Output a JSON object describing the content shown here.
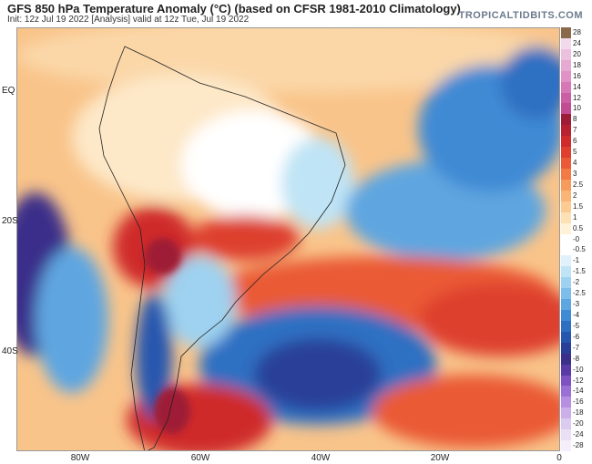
{
  "header": {
    "title": "GFS 850 hPa Temperature Anomaly (°C) (based on CFSR 1981-2010 Climatology)",
    "subtitle": "Init: 12z Jul 19 2022   [Analysis]   valid at 12z Tue, Jul 19 2022",
    "brand": "TROPICALTIDBITS.COM"
  },
  "map": {
    "lat_labels": [
      "EQ",
      "20S",
      "40S"
    ],
    "lon_labels": [
      "80W",
      "60W",
      "40W",
      "20W",
      "0"
    ]
  },
  "legend": {
    "items": [
      {
        "label": "28",
        "color": "#8a6a4a"
      },
      {
        "label": "24",
        "color": "#f3d9ec"
      },
      {
        "label": "20",
        "color": "#ecc1de"
      },
      {
        "label": "18",
        "color": "#e6a9d2"
      },
      {
        "label": "16",
        "color": "#e091c6"
      },
      {
        "label": "14",
        "color": "#d778b6"
      },
      {
        "label": "12",
        "color": "#cc5ea6"
      },
      {
        "label": "10",
        "color": "#c24b93"
      },
      {
        "label": "8",
        "color": "#9e1d36"
      },
      {
        "label": "7",
        "color": "#b82230"
      },
      {
        "label": "6",
        "color": "#cf2a2c"
      },
      {
        "label": "5",
        "color": "#de3f2e"
      },
      {
        "label": "4",
        "color": "#ea5a36"
      },
      {
        "label": "3",
        "color": "#f37a45"
      },
      {
        "label": "2.5",
        "color": "#f79b5c"
      },
      {
        "label": "2",
        "color": "#f9b576"
      },
      {
        "label": "1.5",
        "color": "#fbcb92"
      },
      {
        "label": "1",
        "color": "#fde0b3"
      },
      {
        "label": "0.5",
        "color": "#fff2d6"
      },
      {
        "label": "-0",
        "color": "#ffffff"
      },
      {
        "label": "-0.5",
        "color": "#ffffff"
      },
      {
        "label": "-1",
        "color": "#dff1fa"
      },
      {
        "label": "-1.5",
        "color": "#bfe4f6"
      },
      {
        "label": "-2",
        "color": "#9ed2f0"
      },
      {
        "label": "-2.5",
        "color": "#7dbde9"
      },
      {
        "label": "-3",
        "color": "#5ea6e0"
      },
      {
        "label": "-4",
        "color": "#3f8ad4"
      },
      {
        "label": "-5",
        "color": "#2f6fc2"
      },
      {
        "label": "-6",
        "color": "#2656ae"
      },
      {
        "label": "-7",
        "color": "#2a3f98"
      },
      {
        "label": "-8",
        "color": "#3a2f8a"
      },
      {
        "label": "-10",
        "color": "#5a3aa6"
      },
      {
        "label": "-12",
        "color": "#7e52c2"
      },
      {
        "label": "-14",
        "color": "#9b6fd3"
      },
      {
        "label": "-16",
        "color": "#b68fe0"
      },
      {
        "label": "-18",
        "color": "#ccafe9"
      },
      {
        "label": "-20",
        "color": "#dccbf0"
      },
      {
        "label": "-24",
        "color": "#e9e0f6"
      },
      {
        "label": "-28",
        "color": "#f4effa"
      }
    ]
  }
}
